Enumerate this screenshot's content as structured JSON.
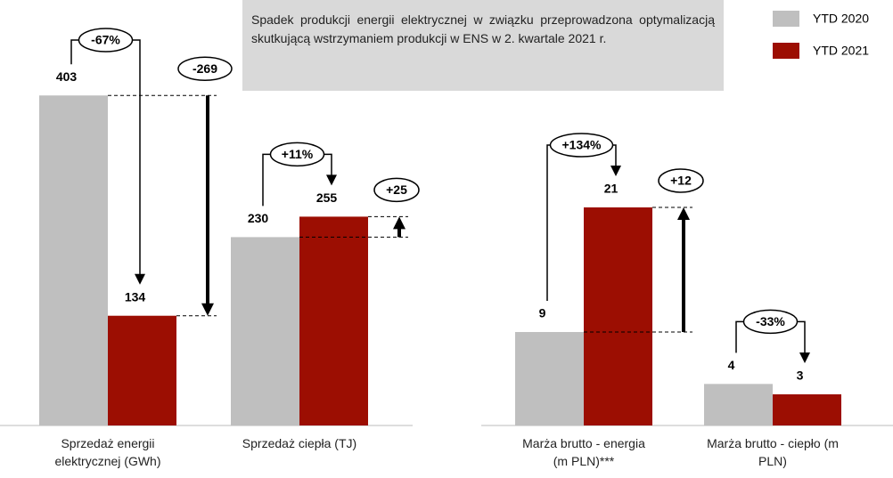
{
  "note": "Spadek produkcji energii elektrycznej w związku przeprowadzona optymalizacją skutkującą wstrzymaniem produkcji w ENS w 2. kwartale 2021 r.",
  "chart_data": [
    {
      "type": "bar",
      "categories": [
        "Sprzedaż energii elektrycznej (GWh)",
        "Sprzedaż ciepła (TJ)"
      ],
      "series": [
        {
          "name": "YTD 2020",
          "color": "#bfbfbf",
          "values": [
            403,
            230
          ]
        },
        {
          "name": "YTD 2021",
          "color": "#9c0e02",
          "values": [
            134,
            255
          ]
        }
      ],
      "ylim": [
        0,
        450
      ],
      "changes": [
        {
          "percent": "-67%",
          "difference": "-269"
        },
        {
          "percent": "+11%",
          "difference": "+25"
        }
      ]
    },
    {
      "type": "bar",
      "categories": [
        "Marża brutto - energia (m PLN)***",
        "Marża brutto - ciepło (m PLN)"
      ],
      "series": [
        {
          "color": "#bfbfbf",
          "values": [
            9,
            4
          ]
        },
        {
          "color": "#9c0e02",
          "values": [
            21,
            3
          ]
        }
      ],
      "ylim": [
        0,
        30
      ],
      "changes": [
        {
          "percent": "+134%",
          "difference": "+12"
        },
        {
          "percent": "-33%"
        }
      ]
    }
  ]
}
